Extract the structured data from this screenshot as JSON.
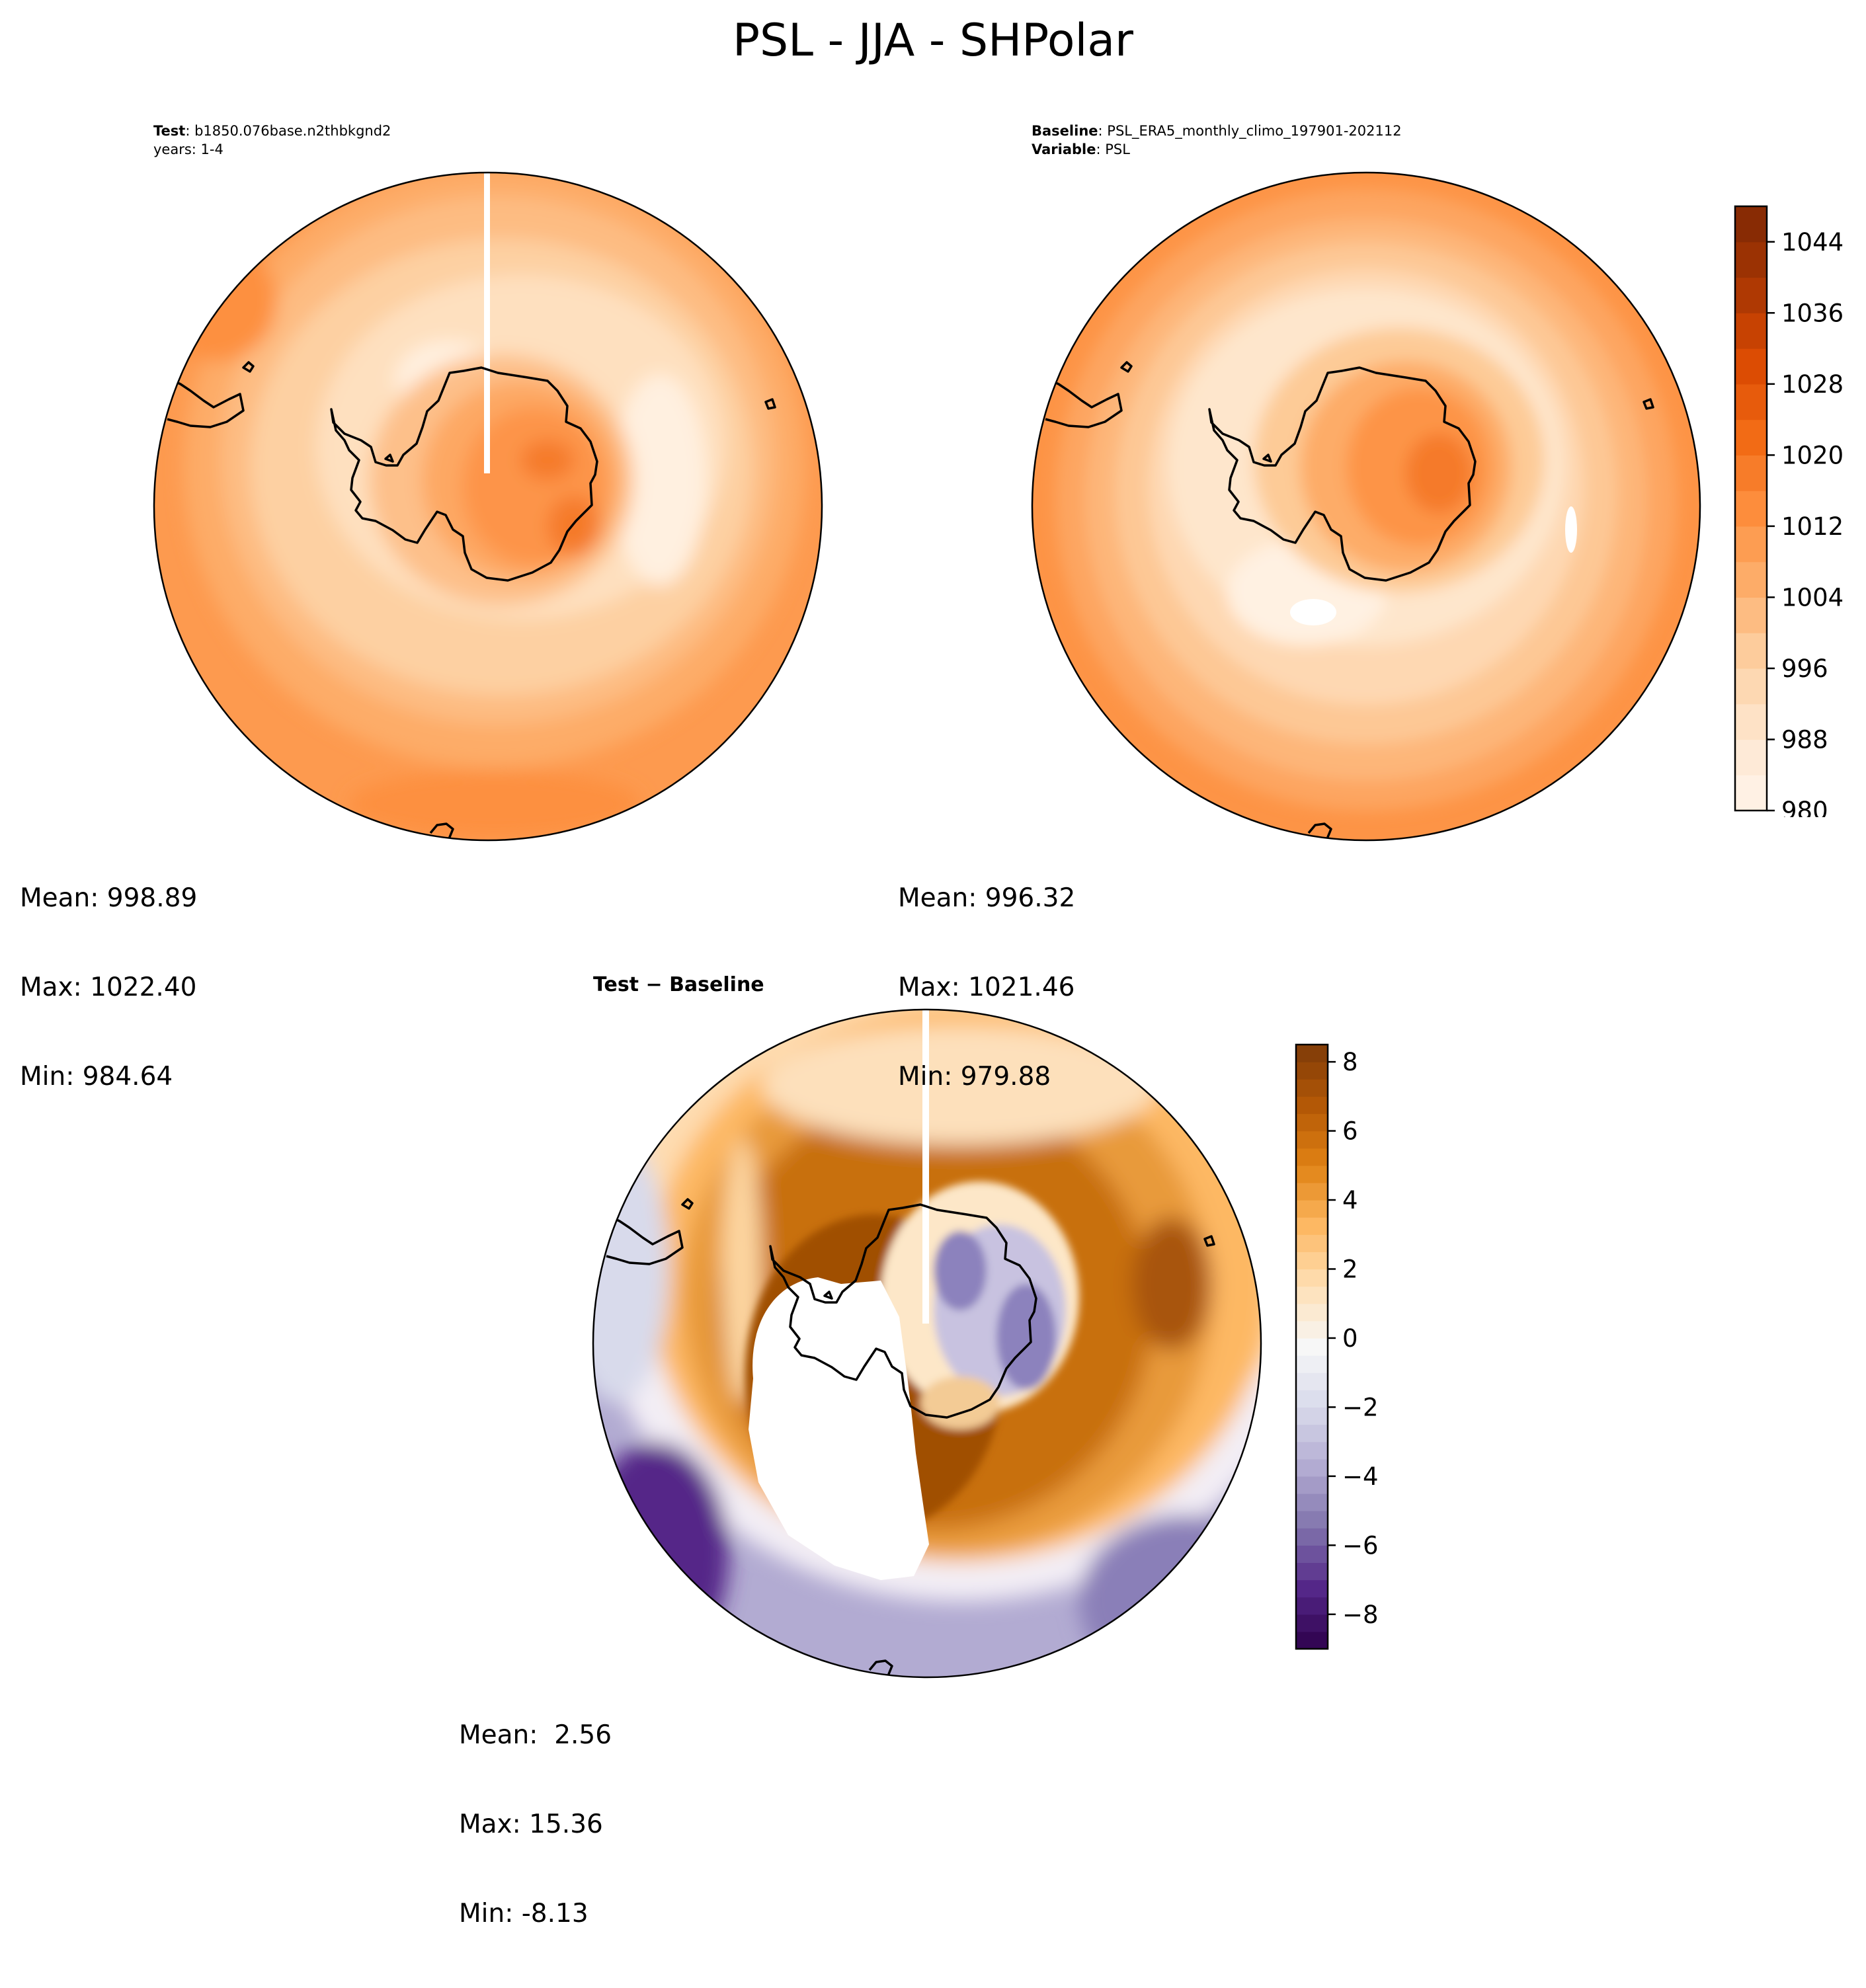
{
  "figure": {
    "title": "PSL - JJA - SHPolar"
  },
  "test_panel": {
    "label": "Test",
    "case": "b1850.076base.n2thbkgnd2",
    "years": "years: 1-4",
    "stats": {
      "mean": "Mean: 998.89",
      "max": "Max: 1022.40",
      "min": "Min: 984.64"
    }
  },
  "baseline_panel": {
    "label": "Baseline",
    "case": "PSL_ERA5_monthly_climo_197901-202112",
    "variable_label": "Variable",
    "variable": "PSL",
    "stats": {
      "mean": "Mean: 996.32",
      "max": "Max: 1021.46",
      "min": "Min: 979.88"
    }
  },
  "diff_panel": {
    "title_test": "Test",
    "title_minus": " − ",
    "title_baseline": "Baseline",
    "stats": {
      "mean": "Mean:  2.56",
      "max": "Max: 15.36",
      "min": "Min: -8.13"
    }
  },
  "colorbar_psl": {
    "ticks": [
      "1044",
      "1036",
      "1028",
      "1020",
      "1012",
      "1004",
      "996",
      "988",
      "980"
    ],
    "colormap": "Oranges",
    "range": [
      980,
      1048
    ]
  },
  "colorbar_diff": {
    "ticks": [
      "8",
      "6",
      "4",
      "2",
      "0",
      "−2",
      "−4",
      "−6",
      "−8"
    ],
    "colormap": "PuOr_r",
    "range": [
      -9,
      8.5
    ]
  },
  "colors": {
    "oranges": [
      "#fff5eb",
      "#fee6ce",
      "#fdd0a2",
      "#fdae6b",
      "#fd8d3c",
      "#f16913",
      "#d94801",
      "#a63603",
      "#7f2704"
    ],
    "puor": [
      "#2d004b",
      "#542788",
      "#8073ac",
      "#b2abd2",
      "#d8daeb",
      "#f7f7f7",
      "#fee0b6",
      "#fdb863",
      "#e08214",
      "#b35806",
      "#7f3b08"
    ]
  }
}
